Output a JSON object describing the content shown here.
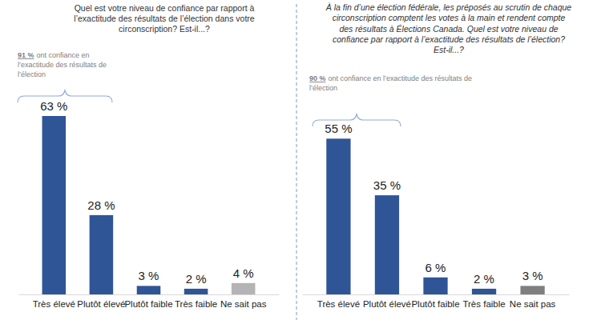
{
  "chart_data": [
    {
      "type": "bar",
      "title": [
        "Quel est votre niveau de confiance par rapport à",
        "l’exactitude des résultats de l’élection dans votre",
        "circonscription? Est-il...?"
      ],
      "categories": [
        "Très élevé",
        "Plutôt élevé",
        "Plutôt faible",
        "Très faible",
        "Ne sait pas"
      ],
      "values": [
        63,
        28,
        3,
        2,
        4
      ],
      "value_labels": [
        "63 %",
        "28 %",
        "3 %",
        "2 %",
        "4 %"
      ],
      "colors": [
        "#2f5597",
        "#2f5597",
        "#2f5597",
        "#2f5597",
        "#b4b4b4"
      ],
      "data_labels": true,
      "tick_labels": "x",
      "annotation": {
        "label": "91 %",
        "lines": [
          "ont confiance en",
          "l’exactitude des résultats de",
          "l’élection"
        ]
      }
    },
    {
      "type": "bar",
      "title": [
        "À la fin d’une élection fédérale, les préposés au scrutin de chaque",
        "circonscription comptent les votes à la main et rendent compte",
        "des résultats à Élections Canada. Quel est votre niveau de",
        "confiance par rapport à l’exactitude des résultats de l’élection?",
        "Est-il...?"
      ],
      "categories": [
        "Très élevé",
        "Plutôt élevé",
        "Plutôt faible",
        "Très faible",
        "Ne sait pas"
      ],
      "values": [
        55,
        35,
        6,
        2,
        3
      ],
      "value_labels": [
        "55 %",
        "35 %",
        "6 %",
        "2 %",
        "3 %"
      ],
      "colors": [
        "#2f5597",
        "#2f5597",
        "#2f5597",
        "#2f5597",
        "#7f7f7f"
      ],
      "data_labels": true,
      "tick_labels": "x",
      "annotation": {
        "label": "90 %",
        "lines": [
          "ont confiance en l’exactitude des résultats de",
          "l’élection"
        ]
      }
    }
  ]
}
